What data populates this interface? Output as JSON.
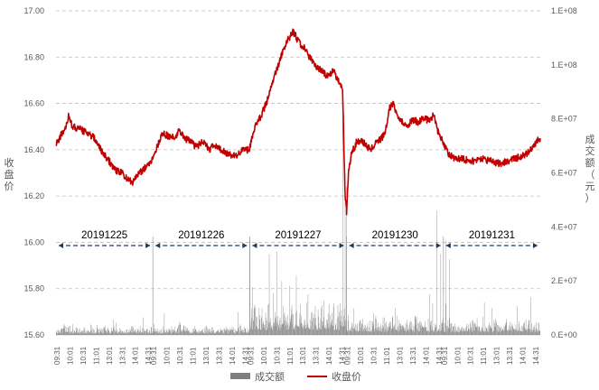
{
  "chart_data": {
    "type": "line",
    "colors": {
      "price": "#c00000",
      "volume": "#7f7f7f",
      "day_range": "#1f3864",
      "grid": "#bfbfbf",
      "day_divider": "#a6a6a6"
    },
    "y_left": {
      "label": "收盘价",
      "min": 15.6,
      "max": 17.0,
      "ticks": [
        "15.60",
        "15.80",
        "16.00",
        "16.20",
        "16.40",
        "16.60",
        "16.80",
        "17.00"
      ]
    },
    "y_right": {
      "label": "成交额（元）",
      "min": 0,
      "max": 120000000,
      "ticks": [
        "0.E+00",
        "2.E+07",
        "4.E+07",
        "6.E+07",
        "8.E+07",
        "1.E+08",
        "1.E+08"
      ]
    },
    "days": [
      "20191225",
      "20191226",
      "20191227",
      "20191230",
      "20191231"
    ],
    "x_ticks": [
      "09:31",
      "10:01",
      "10:31",
      "11:01",
      "13:01",
      "13:31",
      "14:01",
      "14:31"
    ],
    "series": [
      {
        "name": "成交额",
        "type": "bar",
        "axis": "right"
      },
      {
        "name": "收盘价",
        "type": "line",
        "axis": "left",
        "day_keypoints": [
          [
            [
              0,
              16.42
            ],
            [
              0.05,
              16.46
            ],
            [
              0.1,
              16.5
            ],
            [
              0.13,
              16.55
            ],
            [
              0.17,
              16.5
            ],
            [
              0.25,
              16.49
            ],
            [
              0.32,
              16.47
            ],
            [
              0.4,
              16.45
            ],
            [
              0.46,
              16.4
            ],
            [
              0.55,
              16.35
            ],
            [
              0.62,
              16.31
            ],
            [
              0.68,
              16.3
            ],
            [
              0.74,
              16.27
            ],
            [
              0.79,
              16.26
            ],
            [
              0.86,
              16.3
            ],
            [
              0.94,
              16.33
            ],
            [
              1.0,
              16.36
            ]
          ],
          [
            [
              0,
              16.36
            ],
            [
              0.05,
              16.42
            ],
            [
              0.1,
              16.47
            ],
            [
              0.16,
              16.46
            ],
            [
              0.22,
              16.45
            ],
            [
              0.27,
              16.48
            ],
            [
              0.33,
              16.45
            ],
            [
              0.4,
              16.43
            ],
            [
              0.45,
              16.41
            ],
            [
              0.52,
              16.44
            ],
            [
              0.58,
              16.4
            ],
            [
              0.64,
              16.42
            ],
            [
              0.7,
              16.4
            ],
            [
              0.78,
              16.38
            ],
            [
              0.86,
              16.37
            ],
            [
              0.93,
              16.4
            ],
            [
              1.0,
              16.4
            ]
          ],
          [
            [
              0,
              16.41
            ],
            [
              0.04,
              16.48
            ],
            [
              0.08,
              16.52
            ],
            [
              0.12,
              16.55
            ],
            [
              0.17,
              16.6
            ],
            [
              0.22,
              16.68
            ],
            [
              0.28,
              16.75
            ],
            [
              0.34,
              16.82
            ],
            [
              0.4,
              16.88
            ],
            [
              0.45,
              16.91
            ],
            [
              0.5,
              16.87
            ],
            [
              0.56,
              16.84
            ],
            [
              0.62,
              16.8
            ],
            [
              0.68,
              16.76
            ],
            [
              0.74,
              16.74
            ],
            [
              0.8,
              16.72
            ],
            [
              0.86,
              16.74
            ],
            [
              0.92,
              16.7
            ],
            [
              0.96,
              16.65
            ],
            [
              0.985,
              16.2
            ],
            [
              1.0,
              16.15
            ]
          ],
          [
            [
              0,
              16.12
            ],
            [
              0.02,
              16.3
            ],
            [
              0.05,
              16.38
            ],
            [
              0.1,
              16.43
            ],
            [
              0.15,
              16.44
            ],
            [
              0.2,
              16.42
            ],
            [
              0.25,
              16.4
            ],
            [
              0.3,
              16.43
            ],
            [
              0.36,
              16.45
            ],
            [
              0.4,
              16.47
            ],
            [
              0.44,
              16.58
            ],
            [
              0.48,
              16.6
            ],
            [
              0.55,
              16.53
            ],
            [
              0.62,
              16.5
            ],
            [
              0.68,
              16.53
            ],
            [
              0.74,
              16.52
            ],
            [
              0.8,
              16.54
            ],
            [
              0.86,
              16.52
            ],
            [
              0.9,
              16.55
            ],
            [
              0.94,
              16.48
            ],
            [
              0.97,
              16.46
            ],
            [
              1.0,
              16.42
            ]
          ],
          [
            [
              0,
              16.42
            ],
            [
              0.06,
              16.38
            ],
            [
              0.12,
              16.36
            ],
            [
              0.2,
              16.36
            ],
            [
              0.3,
              16.35
            ],
            [
              0.4,
              16.36
            ],
            [
              0.5,
              16.35
            ],
            [
              0.58,
              16.34
            ],
            [
              0.66,
              16.35
            ],
            [
              0.72,
              16.36
            ],
            [
              0.8,
              16.37
            ],
            [
              0.86,
              16.38
            ],
            [
              0.9,
              16.4
            ],
            [
              0.94,
              16.42
            ],
            [
              0.97,
              16.44
            ],
            [
              1.0,
              16.45
            ]
          ]
        ]
      }
    ],
    "volume_spikes": [
      [
        [
          0.9,
          6500000
        ]
      ],
      [
        [
          0.9,
          4000000
        ]
      ],
      [
        [
          0.0,
          35000000
        ],
        [
          0.2,
          30000000
        ],
        [
          0.28,
          31000000
        ],
        [
          0.33,
          20000000
        ],
        [
          0.48,
          22000000
        ],
        [
          0.6,
          15000000
        ],
        [
          0.96,
          88000000
        ],
        [
          0.985,
          60000000
        ]
      ],
      [
        [
          0.0,
          55000000
        ],
        [
          0.5,
          10000000
        ],
        [
          0.86,
          15000000
        ],
        [
          0.93,
          46000000
        ],
        [
          0.97,
          30000000
        ]
      ],
      [
        [
          0.02,
          35000000
        ],
        [
          0.06,
          28000000
        ],
        [
          0.5,
          10000000
        ],
        [
          0.9,
          14000000
        ]
      ]
    ],
    "legend": [
      "成交额",
      "收盘价"
    ]
  }
}
